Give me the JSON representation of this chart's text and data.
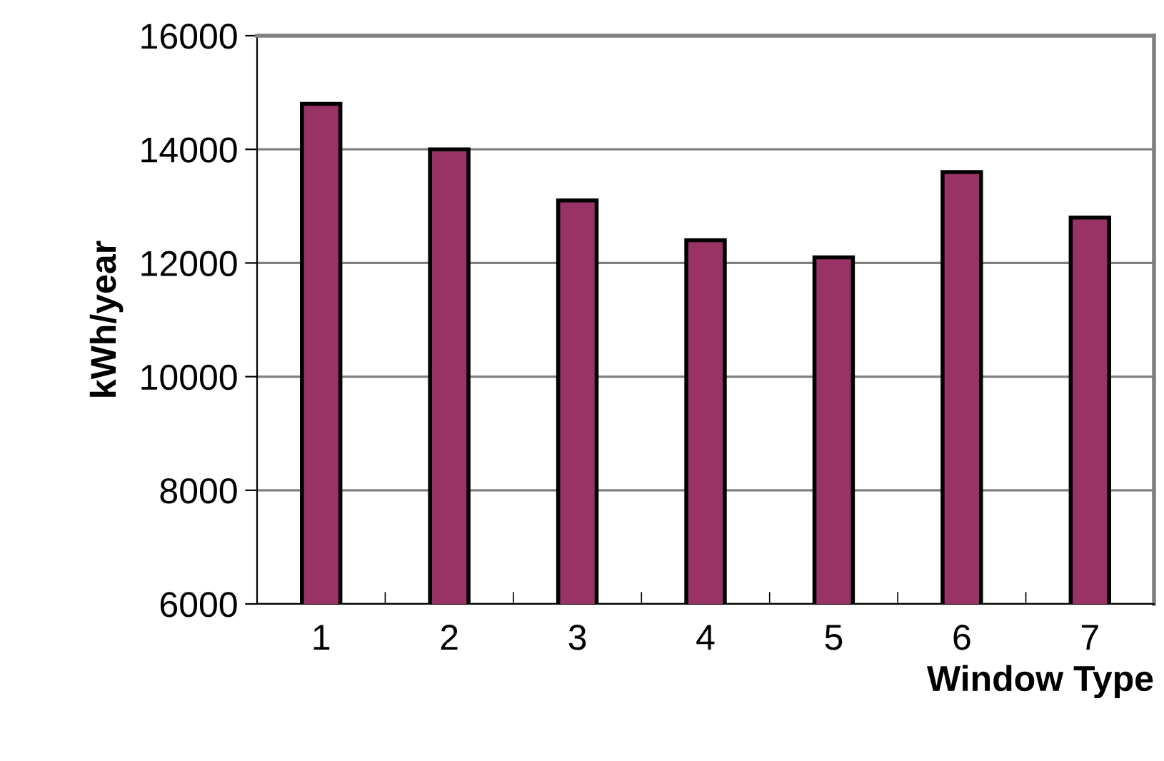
{
  "chart_data": {
    "type": "bar",
    "xlabel": "Window Type",
    "ylabel": "kWh/year",
    "categories": [
      "1",
      "2",
      "3",
      "4",
      "5",
      "6",
      "7"
    ],
    "values": [
      14800,
      14000,
      13100,
      12400,
      12100,
      13600,
      12800
    ],
    "color": "#993366",
    "ylim": [
      6000,
      16000
    ],
    "yticks": [
      6000,
      8000,
      10000,
      12000,
      14000,
      16000
    ],
    "grid": "y"
  }
}
